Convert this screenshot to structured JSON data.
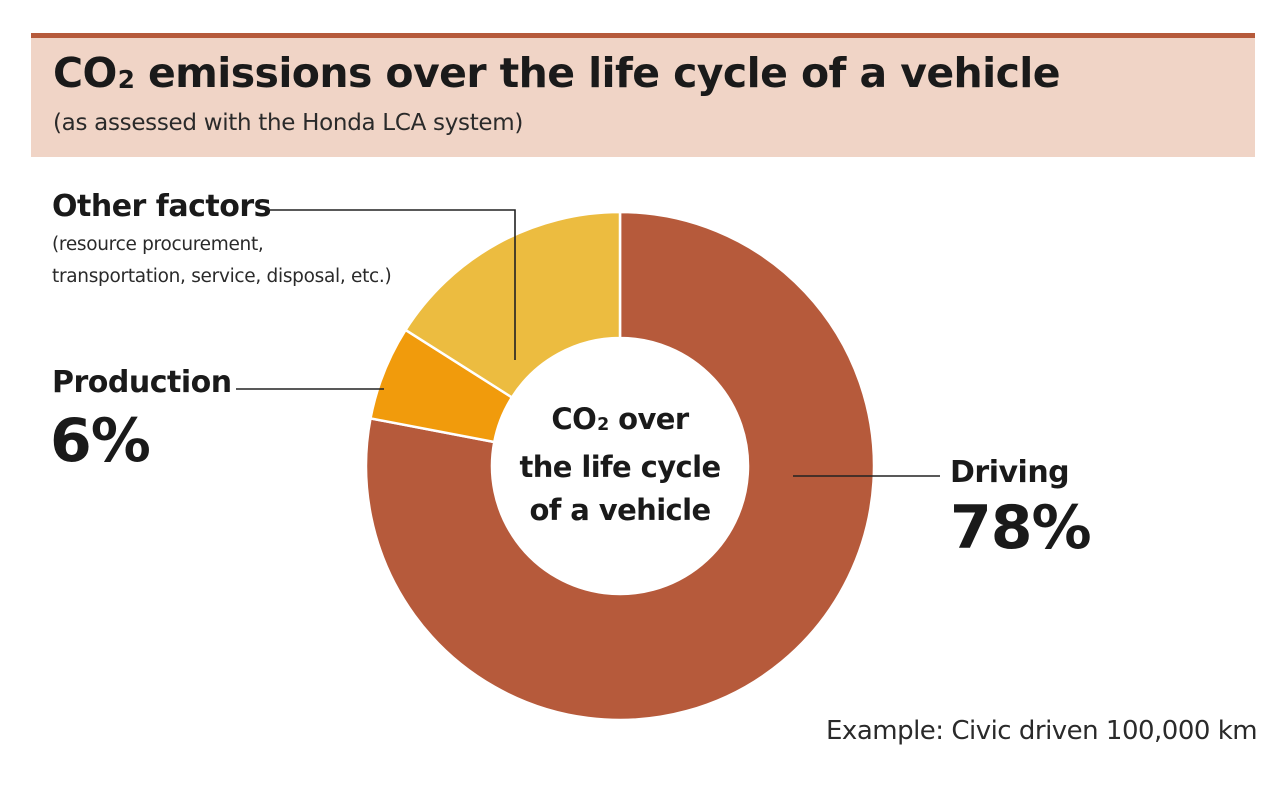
{
  "header": {
    "title_prefix": "CO",
    "title_sub": "2",
    "title_rest": " emissions over the life cycle of a vehicle",
    "subtitle": "(as assessed with the Honda LCA system)"
  },
  "center": {
    "line1_prefix": "CO",
    "line1_sub": "2",
    "line1_rest": " over",
    "line2": "the life cycle",
    "line3": "of a vehicle"
  },
  "footnote": "Example: Civic driven 100,000 km",
  "colors": {
    "driving": "#b65a3b",
    "production": "#f19b0c",
    "other": "#ecbc40",
    "header_band": "#f0d4c6",
    "header_rule": "#b65a3b"
  },
  "chart_data": {
    "type": "pie",
    "variant": "donut",
    "start_angle_deg": 0,
    "direction": "clockwise",
    "slices": [
      {
        "name": "Driving",
        "label": "78%",
        "value": 78,
        "description": [],
        "color": "#b65a3b"
      },
      {
        "name": "Production",
        "label": "6%",
        "value": 6,
        "description": [],
        "color": "#f19b0c"
      },
      {
        "name": "Other factors",
        "label": "",
        "value": 16,
        "description": [
          "(resource procurement,",
          "transportation, service, disposal, etc.)"
        ],
        "color": "#ecbc40"
      }
    ]
  }
}
